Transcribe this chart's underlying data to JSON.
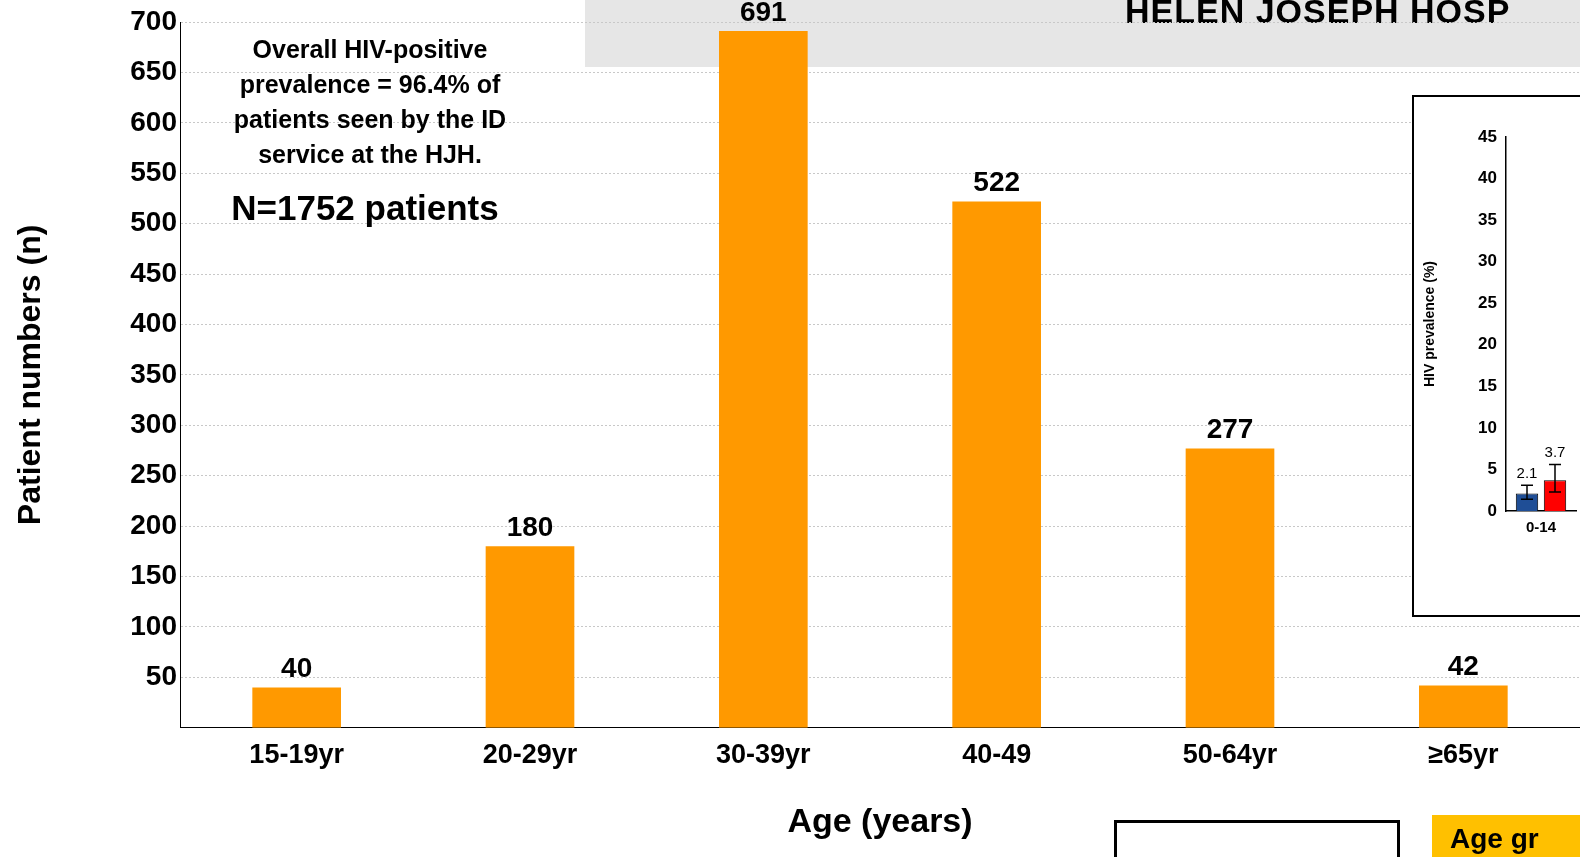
{
  "chart_data": [
    {
      "type": "bar",
      "title": "HELEN JOSEPH HOSP",
      "xlabel": "Age (years)",
      "ylabel": "Patient numbers (n)",
      "categories": [
        "15-19yr",
        "20-29yr",
        "30-39yr",
        "40-49",
        "50-64yr",
        "≥65yr"
      ],
      "values": [
        40,
        180,
        691,
        522,
        277,
        42
      ],
      "color": "#ff9900",
      "ylim": [
        0,
        700
      ],
      "yticks": [
        50,
        100,
        150,
        200,
        250,
        300,
        350,
        400,
        450,
        500,
        550,
        600,
        650,
        700
      ],
      "grid": "y",
      "data_labels": true,
      "legend": false,
      "annotations": [
        "Overall HIV-positive prevalence =  96.4% of patients seen by the ID service at the HJH.",
        "N=1752 patients",
        "Age gr"
      ]
    },
    {
      "type": "bar",
      "ylabel": "HIV prevalence (%)",
      "categories": [
        "0-14"
      ],
      "series": [
        {
          "color": "#1f4e96",
          "values": [
            2.1
          ],
          "errors": [
            [
              1.4,
              3.1
            ]
          ]
        },
        {
          "color": "#ff0000",
          "values": [
            3.7
          ],
          "errors": [
            [
              2.3,
              5.6
            ]
          ]
        }
      ],
      "ylim": [
        0,
        45
      ],
      "yticks": [
        0,
        5,
        10,
        15,
        20,
        25,
        30,
        35,
        40,
        45
      ],
      "grid": false,
      "data_labels": true,
      "legend": false
    }
  ]
}
